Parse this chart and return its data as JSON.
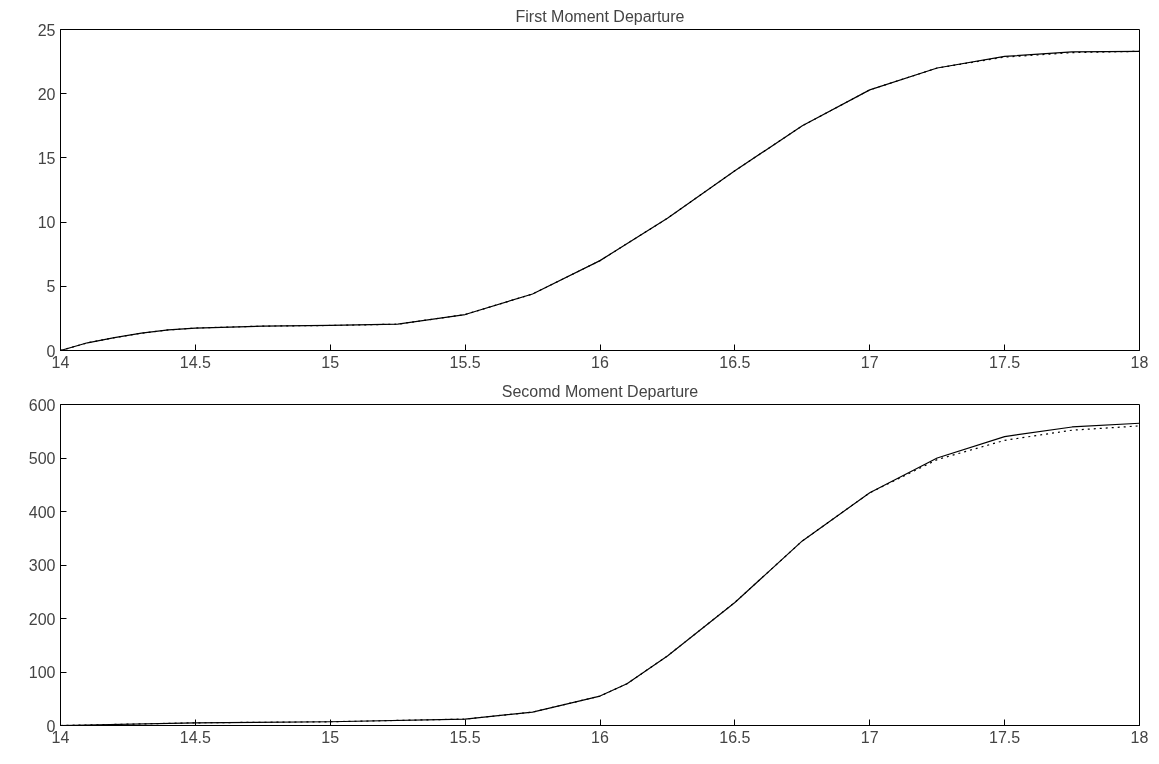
{
  "chart_data": [
    {
      "type": "line",
      "title": "First Moment Departure",
      "xlim": [
        14,
        18
      ],
      "xticks": [
        14,
        14.5,
        15,
        15.5,
        16,
        16.5,
        17,
        17.5,
        18
      ],
      "ylim": [
        0,
        25
      ],
      "yticks": [
        0,
        5,
        10,
        15,
        20,
        25
      ],
      "grid": false,
      "x": [
        14,
        14.1,
        14.2,
        14.3,
        14.4,
        14.5,
        14.75,
        15,
        15.25,
        15.5,
        15.75,
        16,
        16.25,
        16.5,
        16.75,
        17,
        17.25,
        17.5,
        17.75,
        18
      ],
      "series": [
        {
          "color": "#000000",
          "line_style": "solid",
          "values": [
            0,
            0.6,
            1.0,
            1.35,
            1.6,
            1.75,
            1.9,
            1.95,
            2.05,
            2.8,
            4.4,
            7.0,
            10.3,
            14.0,
            17.5,
            20.3,
            22.0,
            22.9,
            23.25,
            23.3
          ]
        },
        {
          "color": "#000000",
          "line_style": "dotted",
          "values": [
            0,
            0.6,
            1.0,
            1.35,
            1.6,
            1.75,
            1.9,
            1.95,
            2.05,
            2.8,
            4.4,
            7.0,
            10.3,
            14.0,
            17.5,
            20.3,
            22.0,
            22.85,
            23.2,
            23.3
          ]
        }
      ]
    },
    {
      "type": "line",
      "title": "Secomd Moment Departure",
      "xlim": [
        14,
        18
      ],
      "xticks": [
        14,
        14.5,
        15,
        15.5,
        16,
        16.5,
        17,
        17.5,
        18
      ],
      "ylim": [
        0,
        600
      ],
      "yticks": [
        0,
        100,
        200,
        300,
        400,
        500,
        600
      ],
      "grid": false,
      "x": [
        14,
        14.5,
        15,
        15.5,
        15.75,
        16,
        16.1,
        16.25,
        16.5,
        16.75,
        17,
        17.25,
        17.5,
        17.75,
        18
      ],
      "series": [
        {
          "color": "#000000",
          "line_style": "solid",
          "values": [
            0,
            5,
            7,
            12,
            25,
            55,
            78,
            130,
            230,
            345,
            435,
            500,
            540,
            558,
            565
          ]
        },
        {
          "color": "#000000",
          "line_style": "dotted",
          "values": [
            0,
            5,
            7,
            12,
            25,
            55,
            78,
            130,
            230,
            345,
            435,
            497,
            533,
            552,
            560
          ]
        }
      ]
    }
  ]
}
